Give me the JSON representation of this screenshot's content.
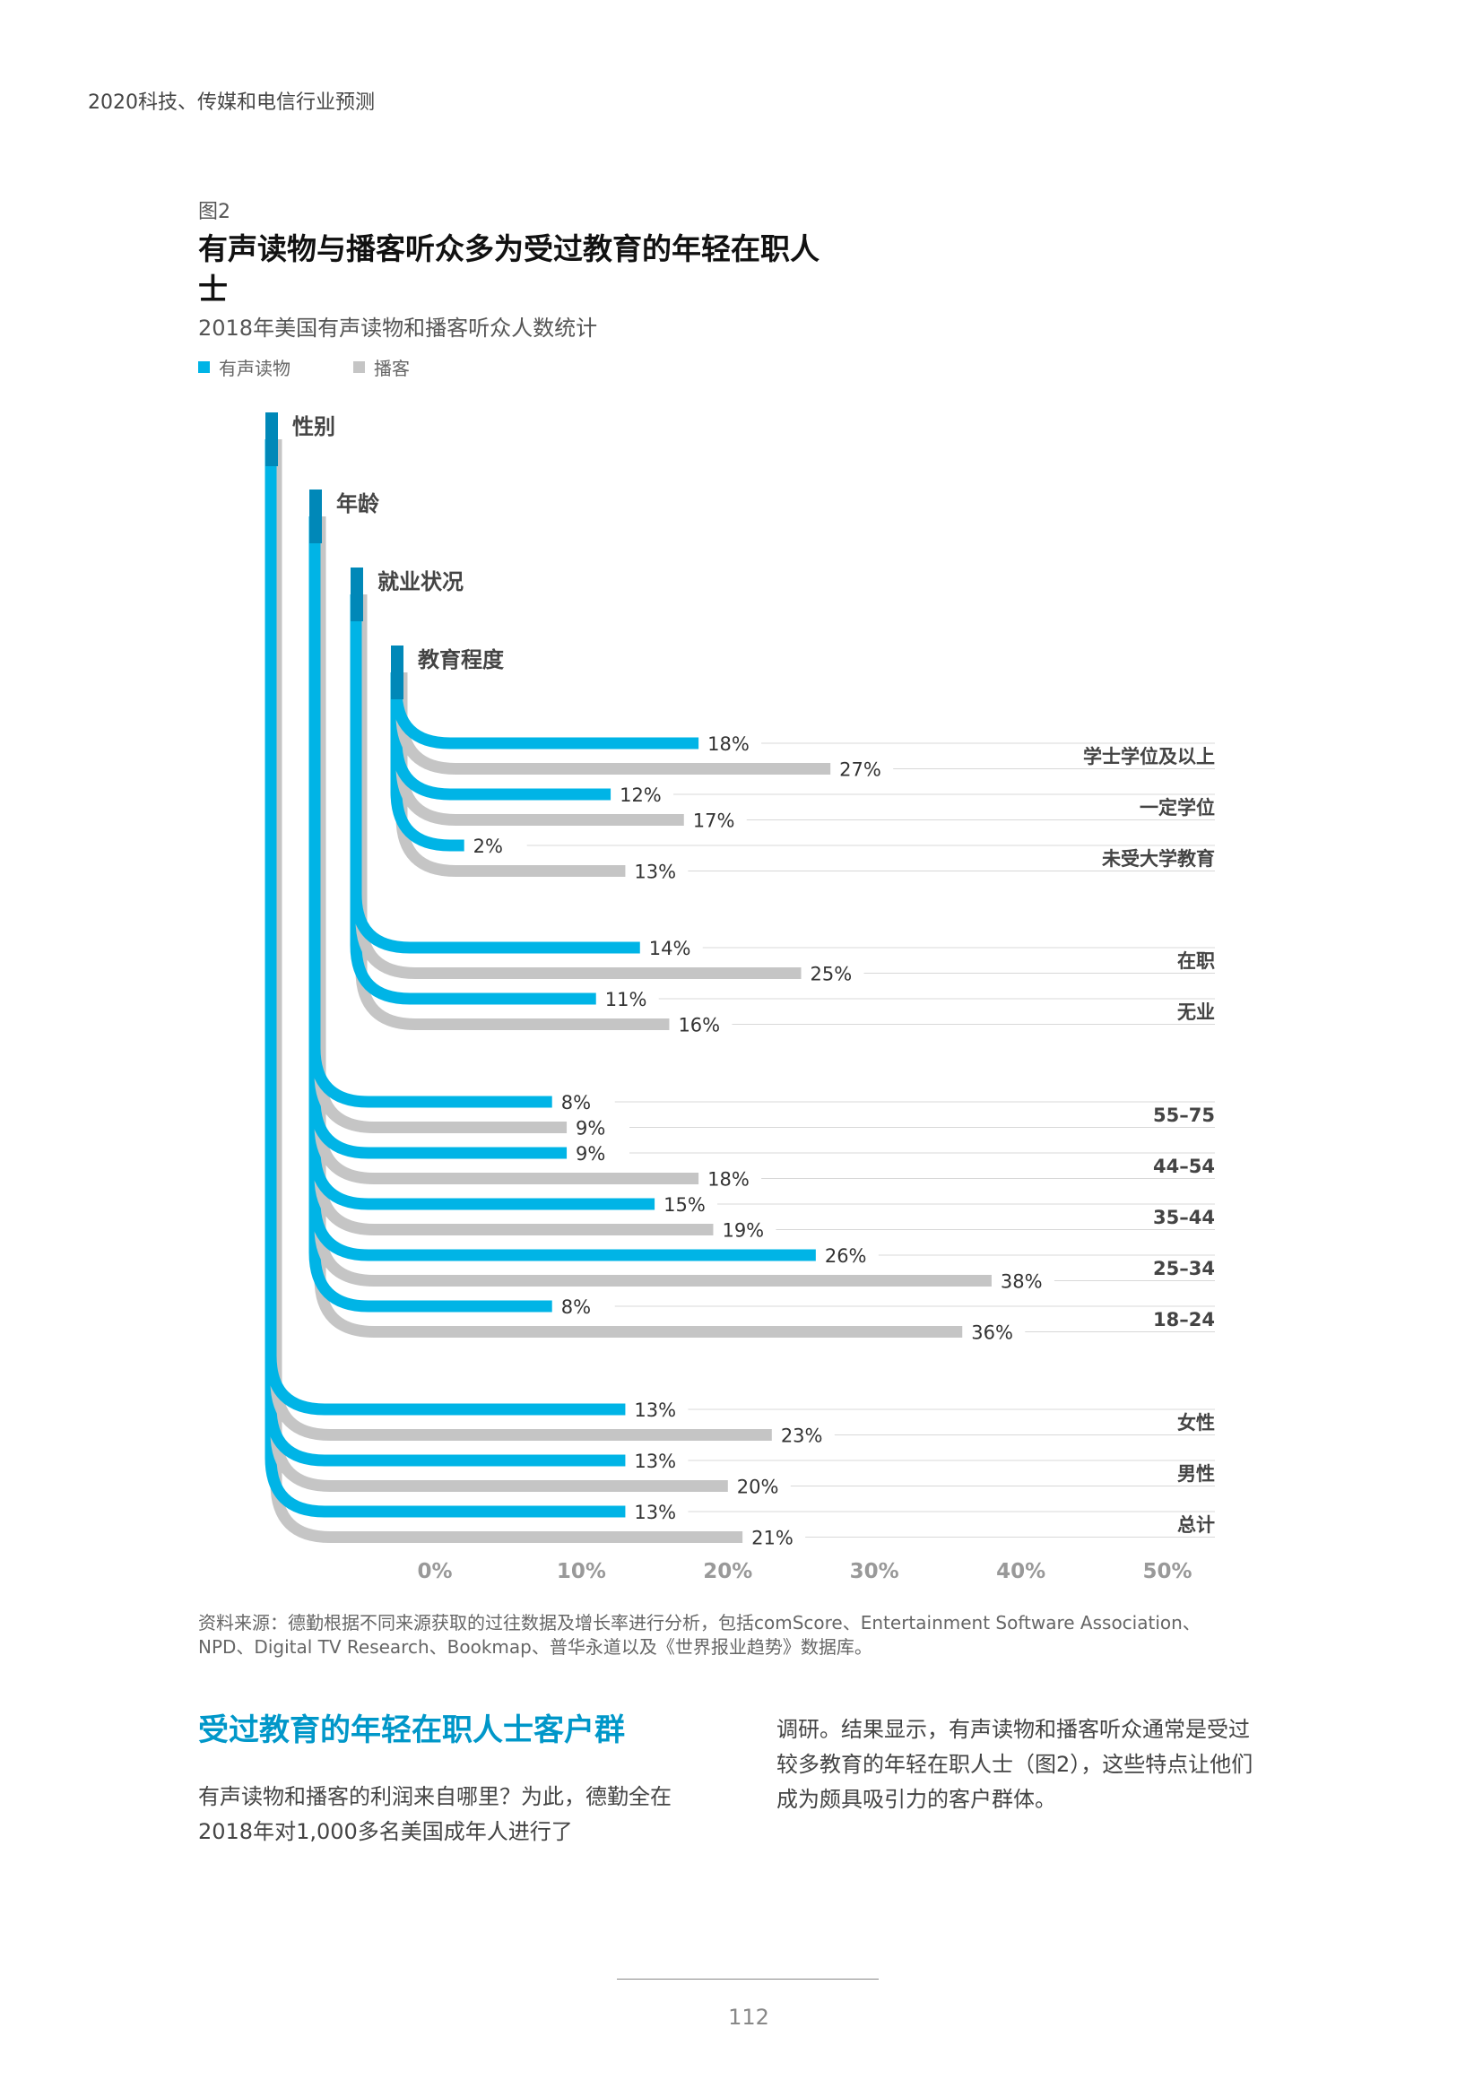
{
  "header": {
    "title": "2020科技、传媒和电信行业预测"
  },
  "figure": {
    "label": "图2",
    "title": "有声读物与播客听众多为受过教育的年轻在职人士",
    "subtitle": "2018年美国有声读物和播客听众人数统计"
  },
  "colors": {
    "audiobook": "#00b4e6",
    "podcast": "#c5c5c5",
    "stem": "#0088b8"
  },
  "chart_data": {
    "type": "bar",
    "orientation": "horizontal",
    "title": "",
    "xlim": [
      0,
      50
    ],
    "x_ticks": [
      "0%",
      "10%",
      "20%",
      "30%",
      "40%",
      "50%"
    ],
    "legend": [
      "有声读物",
      "播客"
    ],
    "legend_position": "top-left",
    "groups": [
      {
        "name": "性别",
        "categories": [
          "女性",
          "男性",
          "总计"
        ],
        "series": [
          {
            "name": "有声读物",
            "values": [
              13,
              13,
              13
            ]
          },
          {
            "name": "播客",
            "values": [
              23,
              20,
              21
            ]
          }
        ]
      },
      {
        "name": "年龄",
        "categories": [
          "55–75",
          "44–54",
          "35–44",
          "25–34",
          "18–24"
        ],
        "series": [
          {
            "name": "有声读物",
            "values": [
              8,
              9,
              15,
              26,
              8
            ]
          },
          {
            "name": "播客",
            "values": [
              9,
              18,
              19,
              38,
              36
            ]
          }
        ]
      },
      {
        "name": "就业状况",
        "categories": [
          "在职",
          "无业"
        ],
        "series": [
          {
            "name": "有声读物",
            "values": [
              14,
              11
            ]
          },
          {
            "name": "播客",
            "values": [
              25,
              16
            ]
          }
        ]
      },
      {
        "name": "教育程度",
        "categories": [
          "学士学位及以上",
          "一定学位",
          "未受大学教育"
        ],
        "series": [
          {
            "name": "有声读物",
            "values": [
              18,
              12,
              2
            ]
          },
          {
            "name": "播客",
            "values": [
              27,
              17,
              13
            ]
          }
        ]
      }
    ]
  },
  "source": {
    "line1": "资料来源：德勤根据不同来源获取的过往数据及增长率进行分析，包括comScore、Entertainment Software Association、",
    "line2": "NPD、Digital TV Research、Bookmap、普华永道以及《世界报业趋势》数据库。"
  },
  "section": {
    "heading": "受过教育的年轻在职人士客户群",
    "para_left": "有声读物和播客的利润来自哪里？为此，德勤全在2018年对1,000多名美国成年人进行了",
    "para_right": "调研。结果显示，有声读物和播客听众通常是受过较多教育的年轻在职人士（图2），这些特点让他们成为颇具吸引力的客户群体。"
  },
  "footer": {
    "page_number": "112"
  }
}
